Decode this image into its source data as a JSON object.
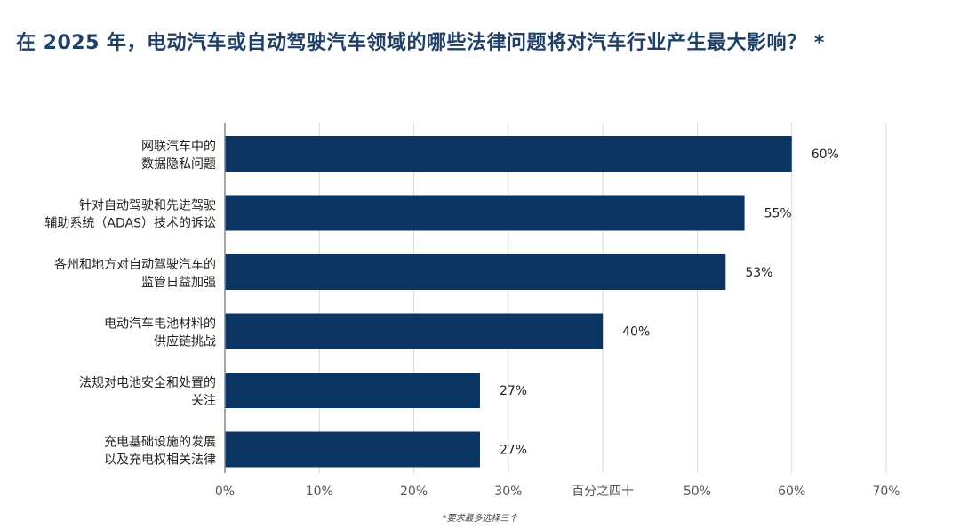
{
  "chart_data": {
    "type": "bar",
    "orientation": "horizontal",
    "title": "在 2025 年，电动汽车或自动驾驶汽车领域的哪些法律问题将对汽车行业产生最大影响？ *",
    "categories": [
      [
        "网联汽车中的",
        "数据隐私问题"
      ],
      [
        "针对自动驾驶和先进驾驶",
        "辅助系统（ADAS）技术的诉讼"
      ],
      [
        "各州和地方对自动驾驶汽车的",
        "监管日益加强"
      ],
      [
        "电动汽车电池材料的",
        "供应链挑战"
      ],
      [
        "法规对电池安全和处置的",
        "关注"
      ],
      [
        "充电基础设施的发展",
        "以及充电权相关法律"
      ]
    ],
    "values": [
      60,
      55,
      53,
      40,
      27,
      27
    ],
    "value_labels": [
      "60%",
      "55%",
      "53%",
      "40%",
      "27%",
      "27%"
    ],
    "xlim": [
      0,
      70
    ],
    "x_ticks": [
      0,
      10,
      20,
      30,
      40,
      50,
      60,
      70
    ],
    "x_tick_labels": [
      "0%",
      "10%",
      "20%",
      "30%",
      "百分之四十",
      "50%",
      "60%",
      "70%"
    ],
    "grid": "vertical",
    "bar_color": "#0b3563",
    "footnote": "*要求最多选择三个"
  }
}
